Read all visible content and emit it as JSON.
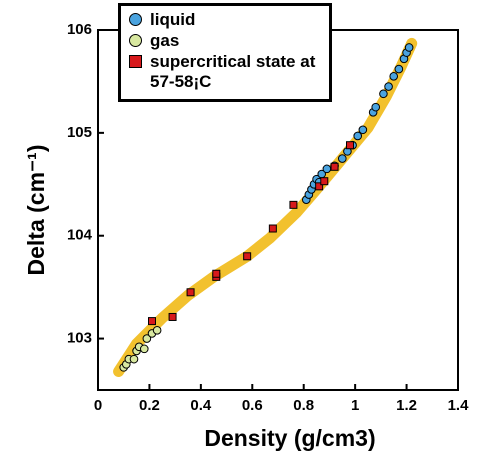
{
  "chart_data": {
    "type": "scatter",
    "x_label": "Density (g/cm3)",
    "y_label": "Delta (cm⁻¹)",
    "xlim": [
      0,
      1.4
    ],
    "xticks": [
      0,
      0.2,
      0.4,
      0.6,
      0.8,
      1,
      1.2,
      1.4
    ],
    "ylim": [
      102.5,
      106
    ],
    "yticks": [
      103,
      104,
      105,
      106
    ],
    "legend": "top-left",
    "curve": {
      "color": "#f2c12e",
      "x": [
        0.08,
        0.15,
        0.25,
        0.35,
        0.45,
        0.58,
        0.67,
        0.77,
        0.85,
        0.95,
        1.05,
        1.12,
        1.18,
        1.22
      ],
      "values": [
        102.68,
        102.95,
        103.2,
        103.42,
        103.6,
        103.8,
        103.98,
        104.22,
        104.45,
        104.75,
        105.05,
        105.35,
        105.65,
        105.87
      ]
    },
    "series": [
      {
        "name": "liquid",
        "color": "#4aa3df",
        "marker": "circle",
        "x": [
          0.81,
          0.82,
          0.83,
          0.84,
          0.85,
          0.86,
          0.87,
          0.89,
          0.92,
          0.95,
          0.97,
          0.99,
          1.01,
          1.03,
          1.07,
          1.08,
          1.11,
          1.13,
          1.15,
          1.17,
          1.19,
          1.2,
          1.21
        ],
        "values": [
          104.35,
          104.4,
          104.45,
          104.5,
          104.55,
          104.52,
          104.6,
          104.65,
          104.68,
          104.75,
          104.82,
          104.88,
          104.97,
          105.03,
          105.2,
          105.25,
          105.38,
          105.45,
          105.55,
          105.62,
          105.72,
          105.78,
          105.83
        ]
      },
      {
        "name": "gas",
        "color": "#d8e8a0",
        "marker": "circle",
        "x": [
          0.1,
          0.11,
          0.12,
          0.14,
          0.15,
          0.16,
          0.18,
          0.19,
          0.21,
          0.23
        ],
        "values": [
          102.72,
          102.75,
          102.8,
          102.8,
          102.88,
          102.92,
          102.9,
          103.0,
          103.05,
          103.08
        ]
      },
      {
        "name": "supercritical state at 57-58¡C",
        "color": "#d7191c",
        "marker": "square",
        "x": [
          0.21,
          0.29,
          0.36,
          0.46,
          0.46,
          0.58,
          0.68,
          0.76,
          0.86,
          0.88,
          0.92,
          0.98
        ],
        "values": [
          103.17,
          103.21,
          103.45,
          103.6,
          103.63,
          103.8,
          104.07,
          104.3,
          104.48,
          104.53,
          104.67,
          104.88
        ]
      }
    ]
  }
}
